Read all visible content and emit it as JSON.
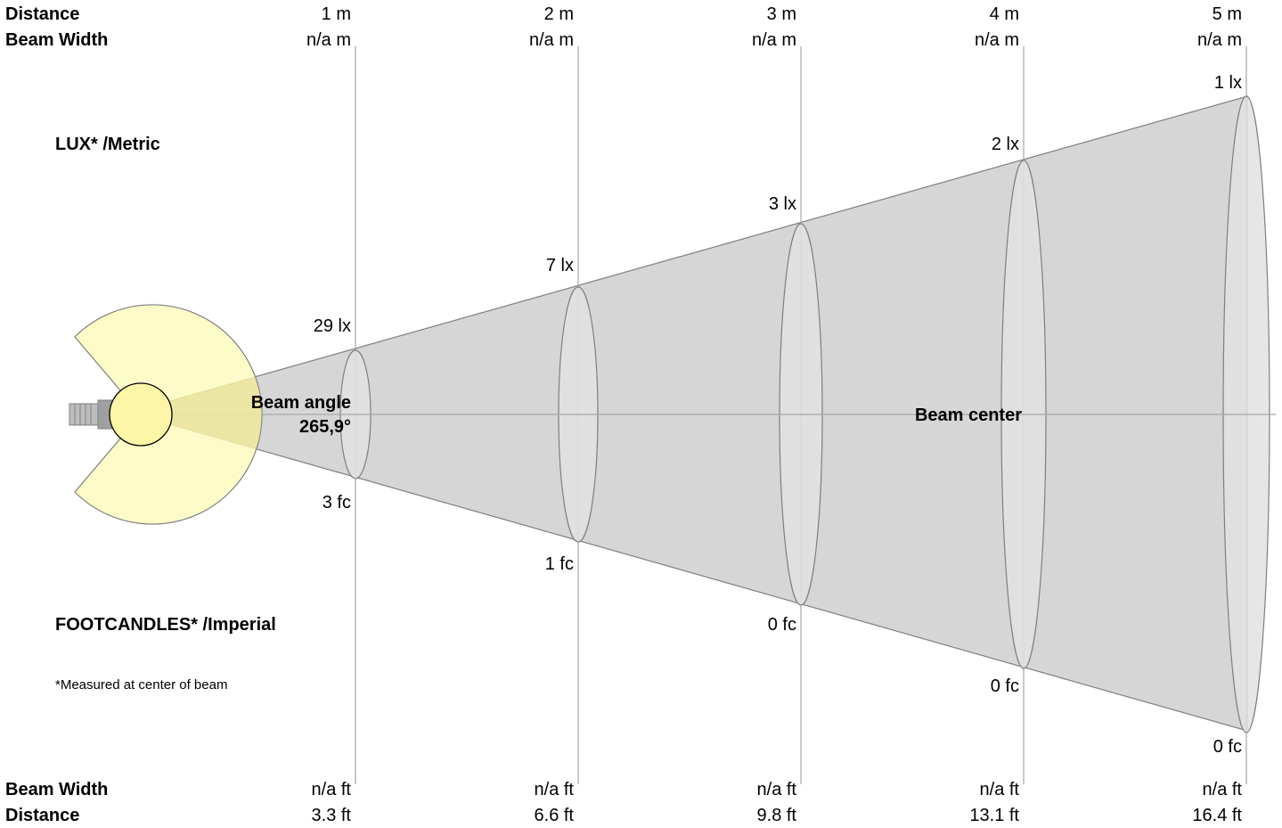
{
  "header": {
    "distance_label": "Distance",
    "beam_width_label": "Beam Width"
  },
  "footer": {
    "beam_width_label": "Beam Width",
    "distance_label": "Distance"
  },
  "legend": {
    "lux_label": "LUX* /Metric",
    "footcandles_label": "FOOTCANDLES* /Imperial",
    "footnote": "*Measured at center of beam"
  },
  "beam": {
    "angle_label": "Beam angle",
    "angle_value": "265,9°",
    "center_label": "Beam center"
  },
  "chart_data": {
    "type": "table",
    "columns": [
      {
        "distance_m": "1 m",
        "beam_width_m": "n/a m",
        "lux": "29 lx",
        "fc": "3 fc",
        "beam_width_ft": "n/a ft",
        "distance_ft": "3.3 ft"
      },
      {
        "distance_m": "2 m",
        "beam_width_m": "n/a m",
        "lux": "7 lx",
        "fc": "1 fc",
        "beam_width_ft": "n/a ft",
        "distance_ft": "6.6 ft"
      },
      {
        "distance_m": "3 m",
        "beam_width_m": "n/a m",
        "lux": "3 lx",
        "fc": "0 fc",
        "beam_width_ft": "n/a ft",
        "distance_ft": "9.8 ft"
      },
      {
        "distance_m": "4 m",
        "beam_width_m": "n/a m",
        "lux": "2 lx",
        "fc": "0 fc",
        "beam_width_ft": "n/a ft",
        "distance_ft": "13.1 ft"
      },
      {
        "distance_m": "5 m",
        "beam_width_m": "n/a m",
        "lux": "1 lx",
        "fc": "0 fc",
        "beam_width_ft": "n/a ft",
        "distance_ft": "16.4 ft"
      }
    ]
  },
  "colors": {
    "cone_fill": "#d6d6d6",
    "ellipse_fill": "#e2e2e2",
    "outline": "#7f7f7f",
    "grid_line": "#a6a6a6",
    "lamp_halo": "#fdfbc0",
    "lamp_bulb": "#fdf6a6",
    "lamp_base": "#a0a0a0"
  },
  "icons": {
    "lamp": "lamp-icon"
  }
}
